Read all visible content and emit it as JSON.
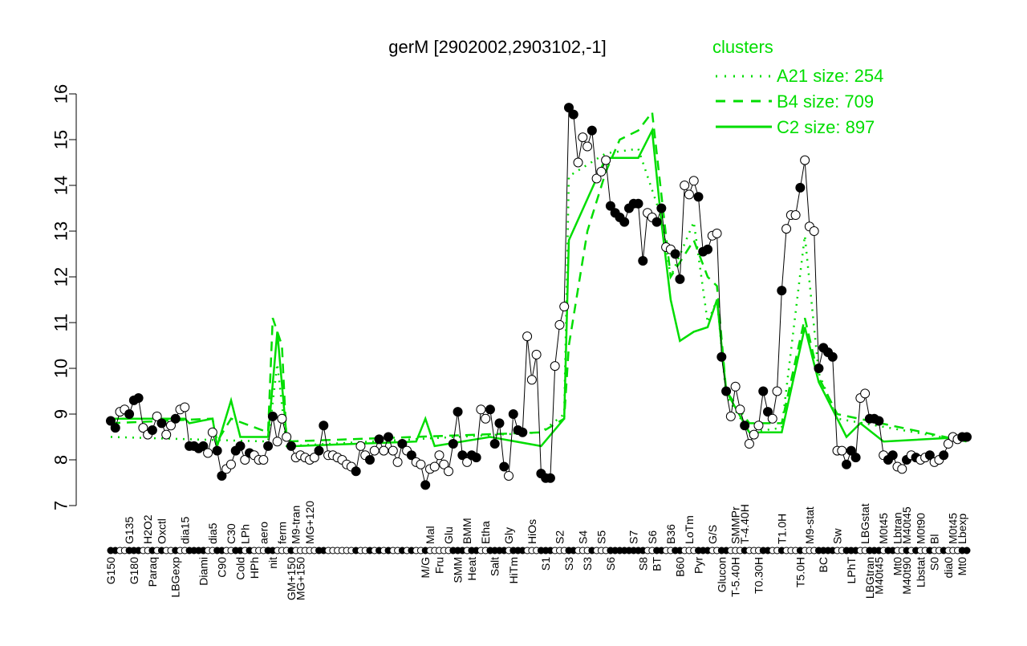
{
  "chart_data": {
    "type": "line",
    "title": "gerM [2902002,2903102,-1]",
    "ylim": [
      7,
      16
    ],
    "yticks": [
      7,
      8,
      9,
      10,
      11,
      12,
      13,
      14,
      15,
      16
    ],
    "grid": false,
    "legend": {
      "title": "clusters",
      "placement": "top-right",
      "entries": [
        {
          "label": "A21 size: 254",
          "style": "dotted"
        },
        {
          "label": "B4 size: 709",
          "style": "dashed"
        },
        {
          "label": "C2 size: 897",
          "style": "solid"
        }
      ]
    },
    "colors": {
      "main": "#000000",
      "clusters": "#00dd00"
    },
    "main_values": [
      8.85,
      8.7,
      9.05,
      9.1,
      9.0,
      9.3,
      9.35,
      8.7,
      8.55,
      8.65,
      8.95,
      8.8,
      8.55,
      8.75,
      8.9,
      9.1,
      9.15,
      8.3,
      8.3,
      8.25,
      8.3,
      8.15,
      8.6,
      8.2,
      7.65,
      7.8,
      7.9,
      8.2,
      8.3,
      8.0,
      8.15,
      8.1,
      8.0,
      8.0,
      8.3,
      8.95,
      8.4,
      8.9,
      8.5,
      8.3,
      8.05,
      8.1,
      8.05,
      8.0,
      8.05,
      8.2,
      8.75,
      8.1,
      8.1,
      8.05,
      8.0,
      7.9,
      7.85,
      7.75,
      8.3,
      8.1,
      8.0,
      8.2,
      8.45,
      8.2,
      8.5,
      8.2,
      7.95,
      8.35,
      8.2,
      8.1,
      7.95,
      7.9,
      7.45,
      7.8,
      7.85,
      8.1,
      7.9,
      7.75,
      8.35,
      9.05,
      8.1,
      7.95,
      8.1,
      8.05,
      9.1,
      8.9,
      9.1,
      8.35,
      8.8,
      7.85,
      7.65,
      9.0,
      8.65,
      8.6,
      10.7,
      9.75,
      10.3,
      7.7,
      7.6,
      7.6,
      10.05,
      10.95,
      11.35,
      15.7,
      15.55,
      14.5,
      15.05,
      14.85,
      15.2,
      14.15,
      14.3,
      14.55,
      13.55,
      13.4,
      13.3,
      13.2,
      13.5,
      13.6,
      13.6,
      12.35,
      13.4,
      13.3,
      13.2,
      13.5,
      12.65,
      12.6,
      12.5,
      11.95,
      14.0,
      13.8,
      14.1,
      13.75,
      12.55,
      12.6,
      12.9,
      12.95,
      10.25,
      9.5,
      8.95,
      9.6,
      9.1,
      8.75,
      8.35,
      8.55,
      8.75,
      9.5,
      9.05,
      8.9,
      9.5,
      11.7,
      13.05,
      13.35,
      13.35,
      13.95,
      14.55,
      13.1,
      13.0,
      10.0,
      10.45,
      10.35,
      10.25,
      8.2,
      8.2,
      7.9,
      8.2,
      8.05,
      9.35,
      9.45,
      8.9,
      8.9,
      8.85,
      8.1,
      8.0,
      8.1,
      7.85,
      7.8,
      8.0,
      8.1,
      8.05,
      8.0,
      8.05,
      8.1,
      7.95,
      8.0,
      8.1,
      8.35,
      8.5,
      8.45,
      8.5,
      8.5
    ],
    "open_points": [
      2,
      3,
      7,
      8,
      10,
      12,
      13,
      15,
      16,
      21,
      22,
      25,
      26,
      29,
      31,
      32,
      33,
      36,
      37,
      38,
      40,
      41,
      42,
      43,
      44,
      47,
      48,
      49,
      50,
      51,
      52,
      54,
      55,
      57,
      59,
      61,
      62,
      64,
      66,
      67,
      69,
      70,
      71,
      72,
      73,
      77,
      80,
      81,
      86,
      90,
      91,
      92,
      96,
      97,
      98,
      101,
      102,
      103,
      105,
      106,
      107,
      116,
      117,
      120,
      121,
      124,
      125,
      126,
      130,
      131,
      134,
      135,
      136,
      138,
      139,
      140,
      143,
      144,
      146,
      147,
      148,
      150,
      151,
      152,
      157,
      158,
      162,
      163,
      167,
      170,
      171,
      173,
      175,
      176,
      178,
      179,
      181,
      182,
      183
    ],
    "cluster_series": [
      {
        "name": "A21",
        "style": "dotted",
        "points": [
          [
            0,
            8.5
          ],
          [
            34,
            8.4
          ],
          [
            36,
            10.1
          ],
          [
            38,
            8.3
          ],
          [
            93,
            8.6
          ],
          [
            98,
            9.0
          ],
          [
            99,
            14.2
          ],
          [
            107,
            14.7
          ],
          [
            114,
            14.8
          ],
          [
            119,
            13.3
          ],
          [
            121,
            12.0
          ],
          [
            126,
            13.2
          ],
          [
            129,
            11.0
          ],
          [
            131,
            11.5
          ],
          [
            133,
            9.4
          ],
          [
            138,
            8.6
          ],
          [
            145,
            8.7
          ],
          [
            150,
            12.9
          ],
          [
            153,
            9.9
          ],
          [
            157,
            8.9
          ],
          [
            185,
            8.4
          ]
        ]
      },
      {
        "name": "B4",
        "style": "dashed",
        "points": [
          [
            0,
            8.8
          ],
          [
            22,
            8.9
          ],
          [
            23,
            8.4
          ],
          [
            26,
            8.9
          ],
          [
            34,
            8.6
          ],
          [
            35,
            11.1
          ],
          [
            37,
            10.5
          ],
          [
            38,
            8.4
          ],
          [
            93,
            8.6
          ],
          [
            98,
            8.9
          ],
          [
            99,
            10.5
          ],
          [
            103,
            13.0
          ],
          [
            107,
            14.3
          ],
          [
            110,
            15.0
          ],
          [
            114,
            15.2
          ],
          [
            117,
            15.6
          ],
          [
            119,
            13.8
          ],
          [
            121,
            12.0
          ],
          [
            126,
            12.8
          ],
          [
            129,
            12.0
          ],
          [
            131,
            11.8
          ],
          [
            133,
            9.5
          ],
          [
            138,
            8.8
          ],
          [
            145,
            8.8
          ],
          [
            150,
            11.1
          ],
          [
            153,
            9.8
          ],
          [
            157,
            9.0
          ],
          [
            185,
            8.4
          ]
        ]
      },
      {
        "name": "C2",
        "style": "solid",
        "points": [
          [
            0,
            8.9
          ],
          [
            16,
            8.9
          ],
          [
            17,
            8.8
          ],
          [
            22,
            8.9
          ],
          [
            23,
            8.3
          ],
          [
            26,
            9.3
          ],
          [
            28,
            8.5
          ],
          [
            34,
            8.5
          ],
          [
            36,
            10.8
          ],
          [
            38,
            8.5
          ],
          [
            40,
            8.3
          ],
          [
            66,
            8.4
          ],
          [
            68,
            8.9
          ],
          [
            70,
            8.3
          ],
          [
            82,
            8.5
          ],
          [
            93,
            8.3
          ],
          [
            98,
            8.9
          ],
          [
            99,
            12.8
          ],
          [
            107,
            14.6
          ],
          [
            114,
            14.6
          ],
          [
            117,
            15.2
          ],
          [
            119,
            13.2
          ],
          [
            121,
            11.5
          ],
          [
            123,
            10.6
          ],
          [
            126,
            10.8
          ],
          [
            129,
            10.9
          ],
          [
            131,
            11.5
          ],
          [
            133,
            9.5
          ],
          [
            138,
            8.6
          ],
          [
            145,
            8.6
          ],
          [
            150,
            10.9
          ],
          [
            153,
            9.7
          ],
          [
            157,
            8.9
          ],
          [
            159,
            8.5
          ],
          [
            162,
            8.8
          ],
          [
            167,
            8.4
          ],
          [
            185,
            8.5
          ]
        ]
      }
    ],
    "xlabels_top": [
      [
        4,
        "G135"
      ],
      [
        8,
        "H2O2"
      ],
      [
        11,
        "Oxctl"
      ],
      [
        16,
        "dia15"
      ],
      [
        22,
        "dia5"
      ],
      [
        26,
        "C30"
      ],
      [
        29,
        "LPh"
      ],
      [
        33,
        "aero"
      ],
      [
        37,
        "ferm"
      ],
      [
        40,
        "M9-tran"
      ],
      [
        43,
        "MG+120"
      ],
      [
        69,
        "Mal"
      ],
      [
        73,
        "Glu"
      ],
      [
        77,
        "BMM"
      ],
      [
        81,
        "Etha"
      ],
      [
        86,
        "Gly"
      ],
      [
        91,
        "HiOs"
      ],
      [
        97,
        "S2"
      ],
      [
        102,
        "S4"
      ],
      [
        106,
        "S5"
      ],
      [
        113,
        "S7"
      ],
      [
        117,
        "S6"
      ],
      [
        121,
        "B36"
      ],
      [
        125,
        "LoTm"
      ],
      [
        130,
        "G/S"
      ],
      [
        135,
        "SMMPr"
      ],
      [
        137,
        "T-4.40H"
      ],
      [
        145,
        "T1.0H"
      ],
      [
        151,
        "M9-stat"
      ],
      [
        157,
        "Sw"
      ],
      [
        163,
        "LBGstat"
      ],
      [
        167,
        "M0t45"
      ],
      [
        170,
        "Lbtran"
      ],
      [
        172,
        "M40t45"
      ],
      [
        175,
        "M0t90"
      ],
      [
        178,
        "Bl"
      ],
      [
        182,
        "M0t45"
      ],
      [
        184,
        "Lbexp"
      ]
    ],
    "xlabels_bottom": [
      [
        0,
        "G150"
      ],
      [
        5,
        "G180"
      ],
      [
        9,
        "Paraq"
      ],
      [
        14,
        "LBGexp"
      ],
      [
        20,
        "Diami"
      ],
      [
        24,
        "C90"
      ],
      [
        28,
        "Cold"
      ],
      [
        31,
        "HPh"
      ],
      [
        35,
        "nit"
      ],
      [
        39,
        "GM+150"
      ],
      [
        41,
        "MG+150"
      ],
      [
        68,
        "M/G"
      ],
      [
        71,
        "Fru"
      ],
      [
        75,
        "SMM"
      ],
      [
        78,
        "Heat"
      ],
      [
        83,
        "Salt"
      ],
      [
        87,
        "HiTm"
      ],
      [
        94,
        "S1"
      ],
      [
        99,
        "S3"
      ],
      [
        103,
        "S3"
      ],
      [
        108,
        "S6"
      ],
      [
        115,
        "S8"
      ],
      [
        118,
        "BT"
      ],
      [
        123,
        "B60"
      ],
      [
        127,
        "Pyr"
      ],
      [
        132,
        "Glucon"
      ],
      [
        135,
        "T-5.40H"
      ],
      [
        140,
        "T0.30H"
      ],
      [
        149,
        "T5.0H"
      ],
      [
        154,
        "BC"
      ],
      [
        160,
        "LPhT"
      ],
      [
        164,
        "LBGtran"
      ],
      [
        166,
        "M40t45"
      ],
      [
        170,
        "Mt0"
      ],
      [
        172,
        "M40t90"
      ],
      [
        175,
        "Lbstat"
      ],
      [
        178,
        "S0"
      ],
      [
        181,
        "dia0"
      ],
      [
        184,
        "Mt0"
      ]
    ]
  }
}
